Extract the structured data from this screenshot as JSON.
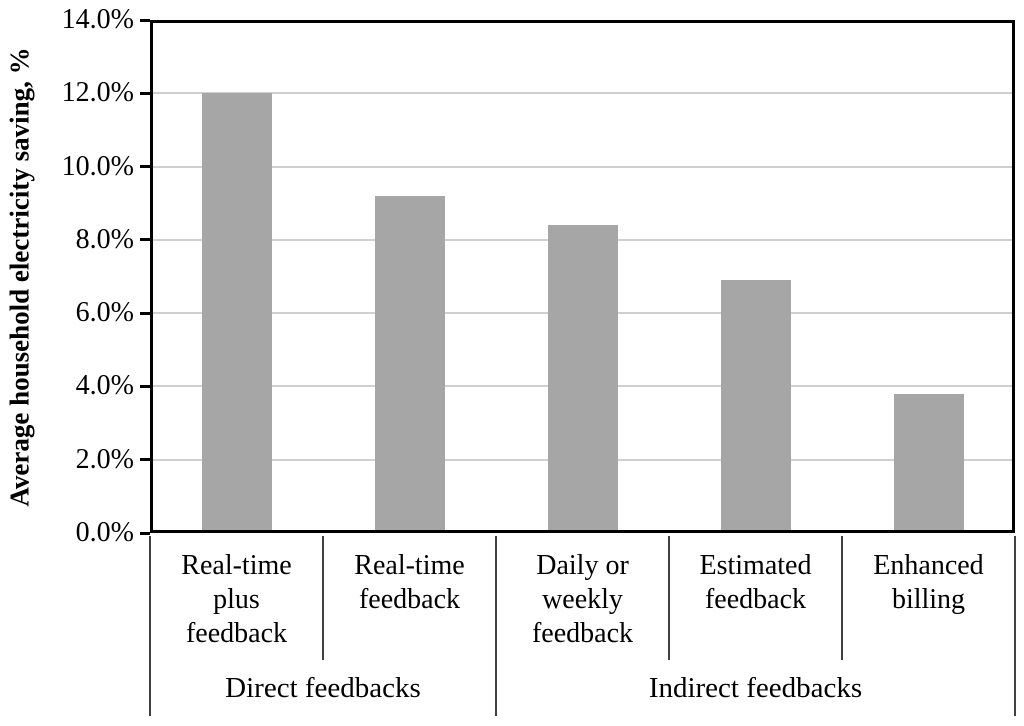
{
  "chart_data": {
    "type": "bar",
    "title": "",
    "ylabel": "Average household electricity saving, %",
    "xlabel": "",
    "ylim": [
      0,
      14
    ],
    "ytick_step": 2,
    "ytick_labels": [
      "0.0%",
      "2.0%",
      "4.0%",
      "6.0%",
      "8.0%",
      "10.0%",
      "12.0%",
      "14.0%"
    ],
    "grid": "horizontal",
    "legend": "none",
    "categories": [
      "Real-time\nplus\nfeedback",
      "Real-time\nfeedback",
      "Daily or\nweekly\nfeedback",
      "Estimated\nfeedback",
      "Enhanced\nbilling"
    ],
    "values": [
      12.0,
      9.2,
      8.4,
      6.9,
      3.8
    ],
    "groups": [
      {
        "label": "Direct feedbacks",
        "span": 2
      },
      {
        "label": "Indirect feedbacks",
        "span": 3
      }
    ],
    "colors": {
      "bar": "#a6a6a6",
      "gridline": "#d0d0d0",
      "axis": "#000000",
      "separator": "#404040",
      "text": "#000000",
      "background": "#ffffff"
    }
  }
}
